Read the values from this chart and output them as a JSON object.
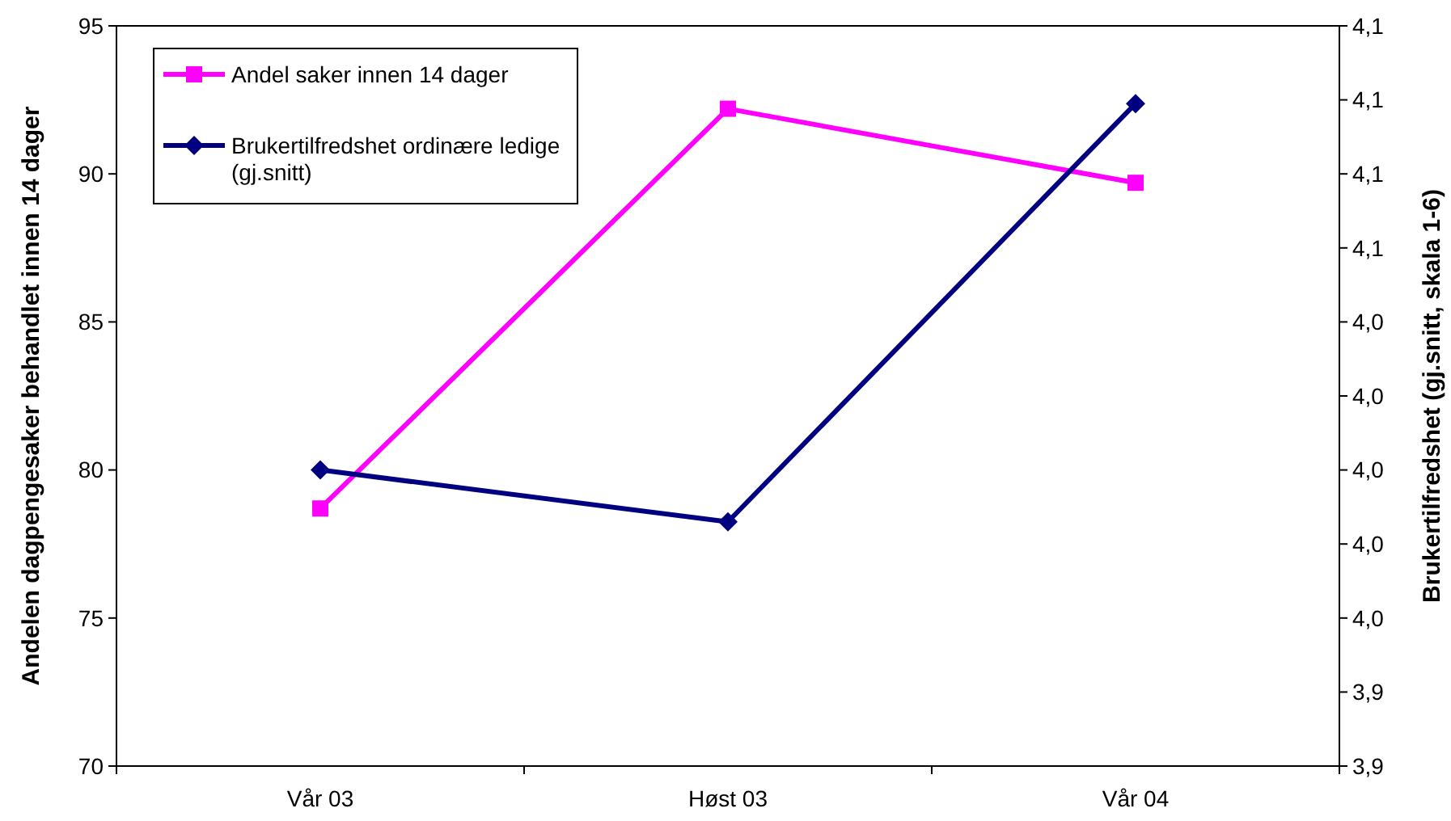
{
  "chart_data": {
    "type": "line",
    "categories": [
      "Vår 03",
      "Høst 03",
      "Vår 04"
    ],
    "ylabel": "Andelen dagpengesaker behandlet innen 14 dager",
    "y2label": "Brukertilfredshet (gj.snitt, skala 1-6)",
    "ylim": [
      70,
      95
    ],
    "yticks": [
      70,
      75,
      80,
      85,
      90,
      95
    ],
    "y2lim": [
      3.92,
      4.12
    ],
    "y2ticks": [
      {
        "value": 3.92,
        "label": "3,9"
      },
      {
        "value": 3.94,
        "label": "3,9"
      },
      {
        "value": 3.96,
        "label": "4,0"
      },
      {
        "value": 3.98,
        "label": "4,0"
      },
      {
        "value": 4.0,
        "label": "4,0"
      },
      {
        "value": 4.02,
        "label": "4,0"
      },
      {
        "value": 4.04,
        "label": "4,0"
      },
      {
        "value": 4.06,
        "label": "4,1"
      },
      {
        "value": 4.08,
        "label": "4,1"
      },
      {
        "value": 4.1,
        "label": "4,1"
      },
      {
        "value": 4.12,
        "label": "4,1"
      }
    ],
    "series": [
      {
        "name": "Andel saker innen 14 dager",
        "color": "#ff00ff",
        "marker": "square",
        "values": [
          78.7,
          92.2,
          89.7
        ]
      },
      {
        "name": "Brukertilfredshet ordinære ledige (gj.snitt)",
        "color": "#000080",
        "marker": "diamond",
        "axis": "y2",
        "values": [
          4.0,
          3.986,
          4.099
        ]
      }
    ],
    "legend": "top left",
    "grid": false
  }
}
